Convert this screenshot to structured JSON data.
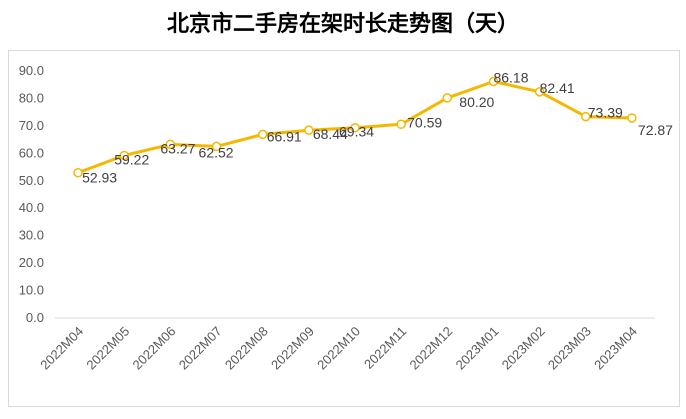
{
  "chart_data": {
    "type": "line",
    "title": "北京市二手房在架时长走势图（天）",
    "categories": [
      "2022M04",
      "2022M05",
      "2022M06",
      "2022M07",
      "2022M08",
      "2022M09",
      "2022M10",
      "2022M11",
      "2022M12",
      "2023M01",
      "2023M02",
      "2023M03",
      "2023M04"
    ],
    "series": [
      {
        "values": [
          52.93,
          59.22,
          63.27,
          62.52,
          66.91,
          68.44,
          69.34,
          70.59,
          80.2,
          86.18,
          82.41,
          73.39,
          72.87
        ],
        "labels": [
          "52.93",
          "59.22",
          "63.27",
          "62.52",
          "66.91",
          "68.44",
          "69.34",
          "70.59",
          "80.20",
          "86.18",
          "82.41",
          "73.39",
          "72.87"
        ],
        "color": "#f5b800"
      }
    ],
    "ylim": [
      0,
      90
    ],
    "yticks": [
      "0.0",
      "10.0",
      "20.0",
      "30.0",
      "40.0",
      "50.0",
      "60.0",
      "70.0",
      "80.0",
      "90.0"
    ],
    "xlabel": "",
    "ylabel": "",
    "grid": false,
    "legend": "none"
  }
}
